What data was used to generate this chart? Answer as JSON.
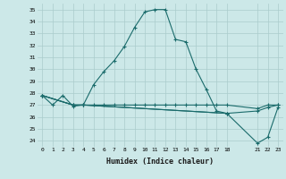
{
  "xlabel": "Humidex (Indice chaleur)",
  "ylabel": "",
  "xlim": [
    -0.5,
    23.5
  ],
  "ylim": [
    23.5,
    35.5
  ],
  "yticks": [
    24,
    25,
    26,
    27,
    28,
    29,
    30,
    31,
    32,
    33,
    34,
    35
  ],
  "xticks": [
    0,
    1,
    2,
    3,
    4,
    5,
    6,
    7,
    8,
    9,
    10,
    11,
    12,
    13,
    14,
    15,
    16,
    17,
    18,
    21,
    22,
    23
  ],
  "xtick_labels": [
    "0",
    "1",
    "2",
    "3",
    "4",
    "5",
    "6",
    "7",
    "8",
    "9",
    "10",
    "11",
    "12",
    "13",
    "14",
    "15",
    "16",
    "17",
    "18",
    "21",
    "22",
    "23"
  ],
  "bg_color": "#cce8e8",
  "grid_color": "#aacccc",
  "line_color": "#1a6b6b",
  "series1_x": [
    0,
    1,
    2,
    3,
    4,
    5,
    6,
    7,
    8,
    9,
    10,
    11,
    12,
    13,
    14,
    15,
    16,
    17,
    18
  ],
  "series1_y": [
    27.8,
    27.0,
    27.8,
    26.9,
    27.0,
    28.7,
    29.8,
    30.7,
    31.9,
    33.5,
    34.8,
    35.0,
    35.0,
    32.5,
    32.3,
    30.0,
    28.3,
    26.5,
    26.3
  ],
  "series2_x": [
    0,
    3,
    4,
    5,
    6,
    7,
    8,
    9,
    10,
    11,
    12,
    13,
    14,
    15,
    16,
    17,
    18,
    21,
    22,
    23
  ],
  "series2_y": [
    27.8,
    27.0,
    27.0,
    27.0,
    27.0,
    27.0,
    27.0,
    27.0,
    27.0,
    27.0,
    27.0,
    27.0,
    27.0,
    27.0,
    27.0,
    27.0,
    27.0,
    26.7,
    27.0,
    27.0
  ],
  "series3_x": [
    0,
    3,
    4,
    18,
    21,
    22,
    23
  ],
  "series3_y": [
    27.8,
    27.0,
    27.0,
    26.3,
    23.8,
    24.3,
    26.8
  ],
  "series4_x": [
    0,
    3,
    4,
    18,
    21,
    22,
    23
  ],
  "series4_y": [
    27.8,
    27.0,
    27.0,
    26.3,
    26.5,
    26.8,
    27.0
  ]
}
